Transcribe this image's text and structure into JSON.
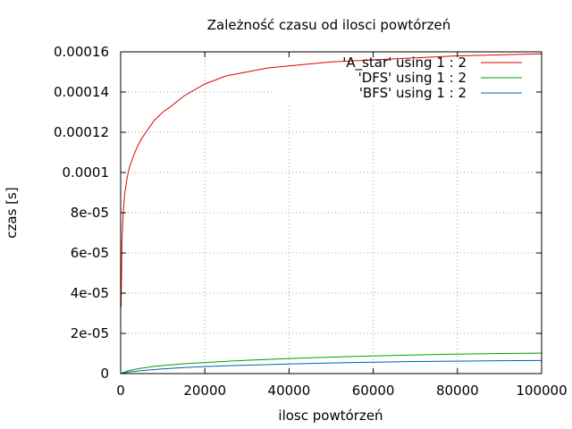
{
  "chart_data": {
    "type": "line",
    "title": "Zależność czasu od ilosci powtórzeń",
    "xlabel": "ilosc powtórzeń",
    "ylabel": "czas [s]",
    "xlim": [
      0,
      100000
    ],
    "ylim": [
      0,
      0.00016
    ],
    "x_ticks": [
      {
        "value": 0,
        "label": "0"
      },
      {
        "value": 20000,
        "label": "20000"
      },
      {
        "value": 40000,
        "label": "40000"
      },
      {
        "value": 60000,
        "label": "60000"
      },
      {
        "value": 80000,
        "label": "80000"
      },
      {
        "value": 100000,
        "label": "100000"
      }
    ],
    "y_ticks": [
      {
        "value": 0,
        "label": "0"
      },
      {
        "value": 2e-05,
        "label": "2e-05"
      },
      {
        "value": 4e-05,
        "label": "4e-05"
      },
      {
        "value": 6e-05,
        "label": "6e-05"
      },
      {
        "value": 8e-05,
        "label": "8e-05"
      },
      {
        "value": 0.0001,
        "label": "0.0001"
      },
      {
        "value": 0.00012,
        "label": "0.00012"
      },
      {
        "value": 0.00014,
        "label": "0.00014"
      },
      {
        "value": 0.00016,
        "label": "0.00016"
      }
    ],
    "grid": true,
    "legend_position": "top-right",
    "series": [
      {
        "name": "'A_star' using 1 : 2",
        "color": "#e00000",
        "x": [
          100,
          300,
          600,
          1000,
          1500,
          2000,
          3000,
          4000,
          5000,
          6000,
          8000,
          10000,
          12000,
          15000,
          20000,
          25000,
          30000,
          35000,
          40000,
          50000,
          60000,
          70000,
          80000,
          90000,
          100000
        ],
        "y": [
          3.3e-05,
          6.5e-05,
          8e-05,
          9e-05,
          9.7e-05,
          0.000102,
          0.000108,
          0.000113,
          0.000117,
          0.00012,
          0.000126,
          0.00013,
          0.000133,
          0.000138,
          0.000144,
          0.000148,
          0.00015,
          0.000152,
          0.000153,
          0.000155,
          0.000156,
          0.000157,
          0.000158,
          0.0001585,
          0.000159
        ]
      },
      {
        "name": "'DFS' using 1 : 2",
        "color": "#00a000",
        "x": [
          100,
          1000,
          2000,
          4000,
          6000,
          8000,
          10000,
          15000,
          20000,
          30000,
          40000,
          50000,
          60000,
          70000,
          80000,
          90000,
          100000
        ],
        "y": [
          2e-07,
          8e-07,
          1.5e-06,
          2.4e-06,
          3e-06,
          3.6e-06,
          4e-06,
          4.9e-06,
          5.5e-06,
          6.6e-06,
          7.5e-06,
          8.2e-06,
          8.8e-06,
          9.3e-06,
          9.7e-06,
          1e-05,
          1.02e-05
        ]
      },
      {
        "name": "'BFS' using 1 : 2",
        "color": "#0060b0",
        "x": [
          100,
          1000,
          2000,
          4000,
          6000,
          8000,
          10000,
          15000,
          20000,
          30000,
          40000,
          50000,
          60000,
          70000,
          80000,
          90000,
          100000
        ],
        "y": [
          1e-07,
          4e-07,
          8e-07,
          1.3e-06,
          1.7e-06,
          2e-06,
          2.3e-06,
          3e-06,
          3.5e-06,
          4.2e-06,
          4.8e-06,
          5.3e-06,
          5.7e-06,
          6e-06,
          6.2e-06,
          6.4e-06,
          6.5e-06
        ]
      }
    ]
  }
}
